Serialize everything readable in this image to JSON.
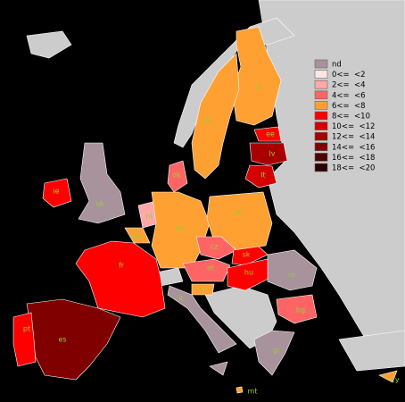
{
  "legend": [
    {
      "label": "nd",
      "color": "#a8929c"
    },
    {
      "label": "0<=  <2",
      "color": "#ffe4e4"
    },
    {
      "label": "2<=  <4",
      "color": "#ffa8a8"
    },
    {
      "label": "4<=  <6",
      "color": "#ff6464"
    },
    {
      "label": "6<=  <8",
      "color": "#ffa033"
    },
    {
      "label": "8<=  <10",
      "color": "#ff0000"
    },
    {
      "label": "10<=  <12",
      "color": "#d40000"
    },
    {
      "label": "12<=  <14",
      "color": "#a80000"
    },
    {
      "label": "14<=  <16",
      "color": "#800000"
    },
    {
      "label": "16<=  <18",
      "color": "#500000"
    },
    {
      "label": "18<=  <20",
      "color": "#2a0000"
    }
  ],
  "countries": [
    {
      "label": "fi",
      "color": "#ffa033"
    },
    {
      "label": "se",
      "color": "#ffa033"
    },
    {
      "label": "ee",
      "color": "#ff0000"
    },
    {
      "label": "lv",
      "color": "#a80000"
    },
    {
      "label": "lt",
      "color": "#d40000"
    },
    {
      "label": "dk",
      "color": "#ff6464"
    },
    {
      "label": "ie",
      "color": "#ff0000"
    },
    {
      "label": "uk",
      "color": "#a8929c"
    },
    {
      "label": "nl",
      "color": "#ffa8a8"
    },
    {
      "label": "be",
      "color": "#ffa033"
    },
    {
      "label": "de",
      "color": "#ffa033"
    },
    {
      "label": "pl",
      "color": "#ffa033"
    },
    {
      "label": "cz",
      "color": "#ff6464"
    },
    {
      "label": "sk",
      "color": "#ff0000"
    },
    {
      "label": "at",
      "color": "#ff6464"
    },
    {
      "label": "hu",
      "color": "#ff0000"
    },
    {
      "label": "si",
      "color": "#ffa033"
    },
    {
      "label": "fr",
      "color": "#ff0000"
    },
    {
      "label": "es",
      "color": "#800000"
    },
    {
      "label": "pt",
      "color": "#ff0000"
    },
    {
      "label": "it",
      "color": "#a8929c"
    },
    {
      "label": "ro",
      "color": "#a8929c"
    },
    {
      "label": "bg",
      "color": "#ff6464"
    },
    {
      "label": "gr",
      "color": "#a8929c"
    },
    {
      "label": "mt",
      "color": "#ffa033"
    },
    {
      "label": "cy",
      "color": "#ffa033"
    }
  ]
}
